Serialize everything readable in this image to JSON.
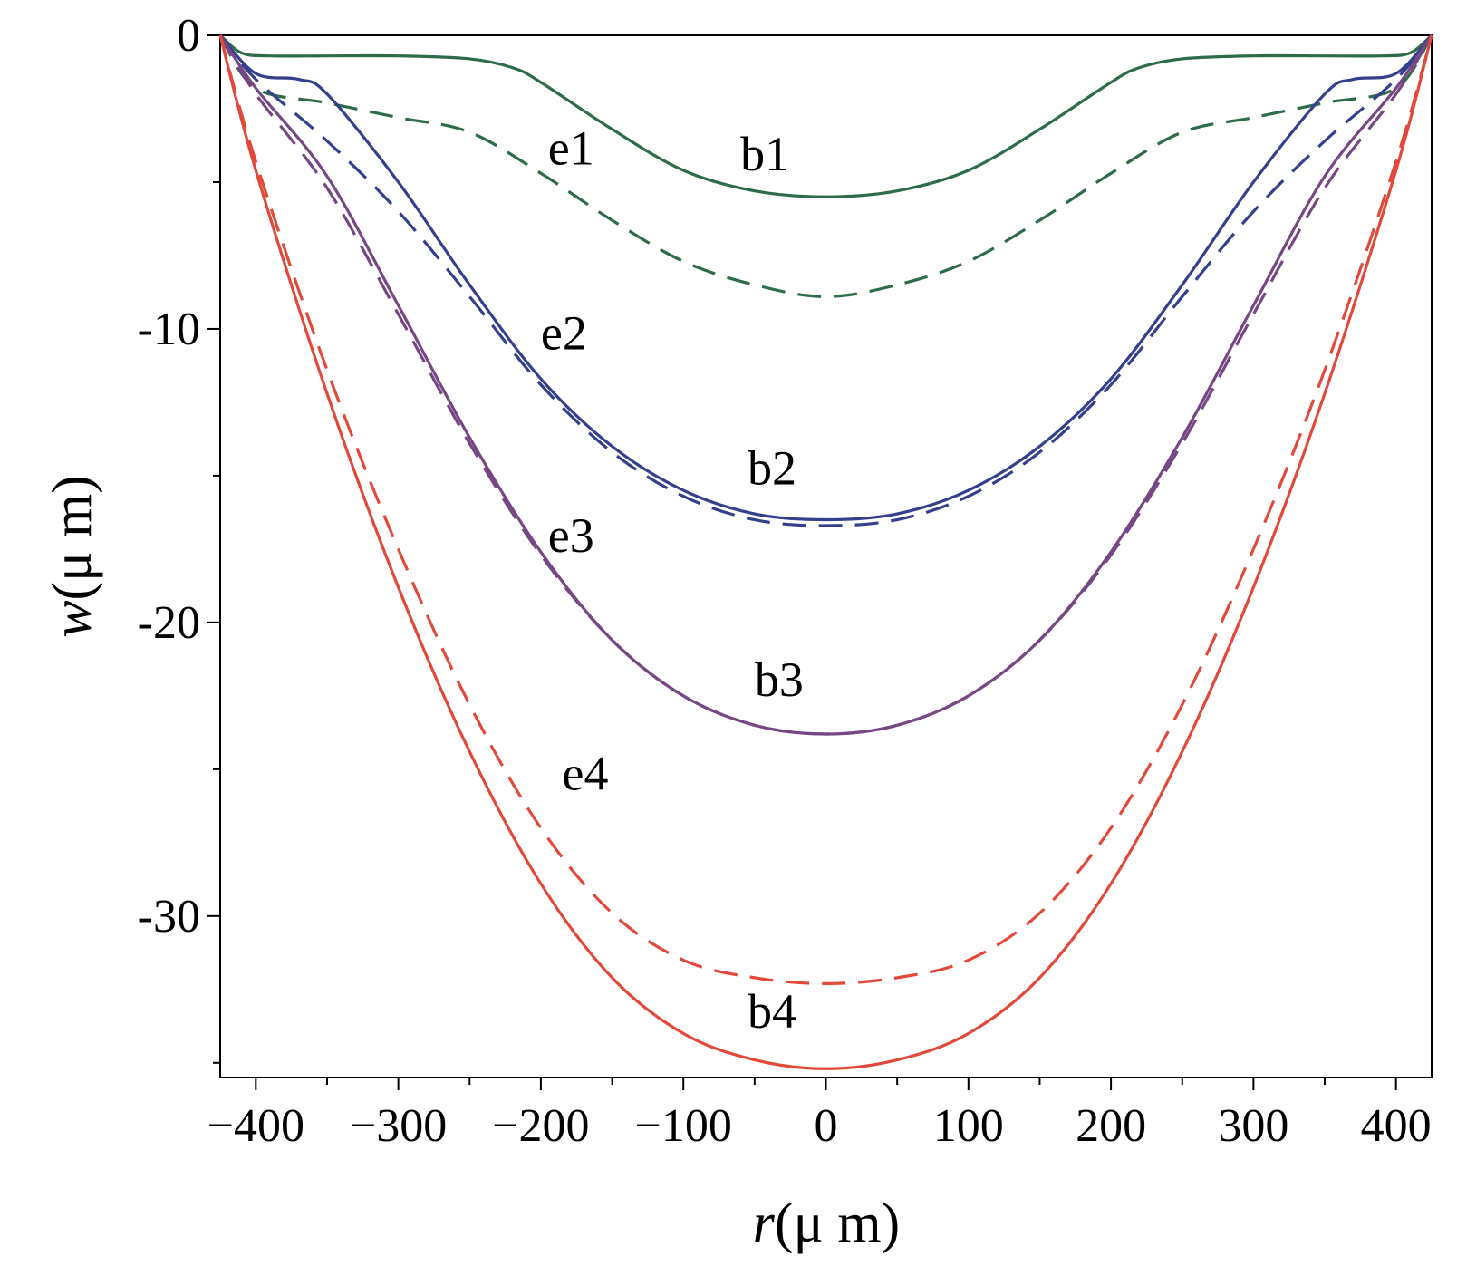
{
  "chart_data": {
    "type": "line",
    "title": "",
    "xlabel": {
      "symbol": "r",
      "unit": "μ m"
    },
    "ylabel": {
      "symbol": "w",
      "unit": "μ m"
    },
    "xlim": [
      -425,
      425
    ],
    "ylim": [
      -35.5,
      0
    ],
    "grid": false,
    "x_ticks": [
      -400,
      -300,
      -200,
      -100,
      0,
      100,
      200,
      300,
      400
    ],
    "x_tick_labels": [
      "−400",
      "−300",
      "−200",
      "−100",
      "0",
      "100",
      "200",
      "300",
      "400"
    ],
    "y_ticks": [
      0,
      -10,
      -20,
      -30
    ],
    "y_tick_labels": [
      "0",
      "-10",
      "-20",
      "-30"
    ],
    "series": [
      {
        "name": "b1",
        "style": "solid",
        "color": "#2e6b48",
        "x": [
          -425,
          -410,
          -390,
          -350,
          -300,
          -250,
          -220,
          -200,
          -150,
          -100,
          -50,
          0,
          50,
          100,
          150,
          200,
          220,
          250,
          300,
          350,
          390,
          410,
          425
        ],
        "y": [
          0,
          -0.6,
          -0.7,
          -0.7,
          -0.7,
          -0.8,
          -1.1,
          -1.6,
          -3.2,
          -4.6,
          -5.3,
          -5.5,
          -5.3,
          -4.6,
          -3.2,
          -1.6,
          -1.1,
          -0.8,
          -0.7,
          -0.7,
          -0.7,
          -0.6,
          0
        ],
        "label": {
          "text": "b1",
          "x": -60,
          "y": -4.6
        }
      },
      {
        "name": "e1",
        "style": "dashed",
        "color": "#2e6b48",
        "x": [
          -425,
          -400,
          -350,
          -300,
          -250,
          -200,
          -150,
          -100,
          -50,
          0,
          50,
          100,
          150,
          200,
          250,
          300,
          350,
          400,
          425
        ],
        "y": [
          0,
          -1.8,
          -2.3,
          -2.8,
          -3.3,
          -4.7,
          -6.3,
          -7.7,
          -8.5,
          -8.9,
          -8.5,
          -7.7,
          -6.3,
          -4.7,
          -3.3,
          -2.8,
          -2.3,
          -1.8,
          0
        ],
        "label": {
          "text": "e1",
          "x": -195,
          "y": -4.4
        }
      },
      {
        "name": "b2",
        "style": "solid",
        "color": "#34408e",
        "x": [
          -425,
          -400,
          -370,
          -350,
          -300,
          -250,
          -200,
          -150,
          -100,
          -50,
          0,
          50,
          100,
          150,
          200,
          250,
          300,
          350,
          370,
          400,
          425
        ],
        "y": [
          0,
          -1.3,
          -1.5,
          -2.0,
          -5.0,
          -8.5,
          -11.7,
          -14.0,
          -15.5,
          -16.3,
          -16.5,
          -16.3,
          -15.5,
          -14.0,
          -11.7,
          -8.5,
          -5.0,
          -2.0,
          -1.5,
          -1.3,
          0
        ],
        "label": {
          "text": "b2",
          "x": -55,
          "y": -15.3
        }
      },
      {
        "name": "e2",
        "style": "dashed",
        "color": "#34408e",
        "x": [
          -425,
          -400,
          -350,
          -300,
          -250,
          -200,
          -150,
          -100,
          -50,
          0,
          50,
          100,
          150,
          200,
          250,
          300,
          350,
          400,
          425
        ],
        "y": [
          0,
          -1.5,
          -3.6,
          -6.0,
          -8.9,
          -11.9,
          -14.2,
          -15.7,
          -16.5,
          -16.7,
          -16.5,
          -15.7,
          -14.2,
          -11.9,
          -8.9,
          -6.0,
          -3.6,
          -1.5,
          0
        ],
        "label": {
          "text": "e2",
          "x": -200,
          "y": -10.7
        }
      },
      {
        "name": "b3",
        "style": "solid",
        "color": "#774685",
        "x": [
          -425,
          -400,
          -350,
          -300,
          -250,
          -200,
          -150,
          -100,
          -50,
          0,
          50,
          100,
          150,
          200,
          250,
          300,
          350,
          400,
          425
        ],
        "y": [
          0,
          -1.8,
          -4.8,
          -9.2,
          -13.7,
          -17.6,
          -20.6,
          -22.5,
          -23.5,
          -23.8,
          -23.5,
          -22.5,
          -20.6,
          -17.6,
          -13.7,
          -9.2,
          -4.8,
          -1.8,
          0
        ],
        "label": {
          "text": "b3",
          "x": -50,
          "y": -22.5
        }
      },
      {
        "name": "e3",
        "style": "dashed",
        "color": "#774685",
        "x": [
          -425,
          -400,
          -350,
          -300,
          -250,
          -200,
          -150,
          -100,
          -50,
          0,
          50,
          100,
          150,
          200,
          250,
          300,
          350,
          400,
          425
        ],
        "y": [
          0,
          -2.0,
          -5.2,
          -9.5,
          -13.9,
          -17.7,
          -20.6,
          -22.5,
          -23.5,
          -23.8,
          -23.5,
          -22.5,
          -20.6,
          -17.7,
          -13.9,
          -9.5,
          -5.2,
          -2.0,
          0
        ],
        "label": {
          "text": "e3",
          "x": -195,
          "y": -17.6
        }
      },
      {
        "name": "b4",
        "style": "solid",
        "color": "#e2493a",
        "x": [
          -425,
          -400,
          -350,
          -300,
          -250,
          -200,
          -150,
          -100,
          -50,
          0,
          50,
          100,
          150,
          200,
          250,
          300,
          350,
          400,
          425
        ],
        "y": [
          0,
          -4.6,
          -12.2,
          -18.8,
          -24.4,
          -28.9,
          -32.1,
          -34.0,
          -34.9,
          -35.2,
          -34.9,
          -34.0,
          -32.1,
          -28.9,
          -24.4,
          -18.8,
          -12.2,
          -4.6,
          0
        ],
        "label": {
          "text": "b4",
          "x": -55,
          "y": -33.8
        }
      },
      {
        "name": "e4",
        "style": "dashed",
        "color": "#e2493a",
        "x": [
          -425,
          -400,
          -350,
          -300,
          -250,
          -200,
          -150,
          -100,
          -50,
          0,
          50,
          100,
          150,
          200,
          250,
          300,
          350,
          400,
          425
        ],
        "y": [
          0,
          -4.3,
          -11.4,
          -17.5,
          -22.8,
          -27.0,
          -29.9,
          -31.5,
          -32.1,
          -32.3,
          -32.1,
          -31.5,
          -29.9,
          -27.0,
          -22.8,
          -17.5,
          -11.4,
          -4.3,
          0
        ],
        "label": {
          "text": "e4",
          "x": -185,
          "y": -25.7
        }
      }
    ]
  }
}
